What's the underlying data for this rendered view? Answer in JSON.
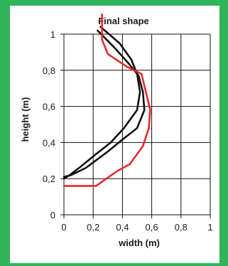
{
  "chart_data": {
    "type": "line",
    "title": "Final shape",
    "xlabel": "width (m)",
    "ylabel": "height (m)",
    "xlim": [
      0,
      1
    ],
    "ylim": [
      0,
      1
    ],
    "x_ticks": [
      "0",
      "0,2",
      "0,4",
      "0,6",
      "0,8",
      "1"
    ],
    "y_ticks": [
      "0",
      "0,2",
      "0,4",
      "0,6",
      "0,8",
      "1"
    ],
    "grid": true,
    "colors": {
      "black": "#111111",
      "red": "#e32a2a",
      "background": "#2fb45a"
    },
    "series": [
      {
        "color": "#111111",
        "x": [
          0.25,
          0.38,
          0.46,
          0.5,
          0.52,
          0.5,
          0.41,
          0.32,
          0.21,
          0.12,
          0.04,
          0.0
        ],
        "y": [
          1.04,
          0.95,
          0.86,
          0.78,
          0.68,
          0.58,
          0.48,
          0.4,
          0.33,
          0.27,
          0.22,
          0.2
        ]
      },
      {
        "color": "#111111",
        "x": [
          0.23,
          0.34,
          0.44,
          0.51,
          0.54,
          0.55,
          0.5,
          0.39,
          0.3,
          0.15,
          0.05,
          0.0
        ],
        "y": [
          1.02,
          0.93,
          0.84,
          0.77,
          0.68,
          0.58,
          0.48,
          0.41,
          0.35,
          0.26,
          0.22,
          0.21
        ]
      },
      {
        "color": "#e32a2a",
        "x": [
          0.26,
          0.26,
          0.3,
          0.43,
          0.53,
          0.56,
          0.59,
          0.58,
          0.54,
          0.45,
          0.36,
          0.22,
          0.0
        ],
        "y": [
          1.11,
          0.97,
          0.89,
          0.82,
          0.78,
          0.68,
          0.58,
          0.48,
          0.38,
          0.28,
          0.24,
          0.16,
          0.16
        ]
      }
    ]
  }
}
